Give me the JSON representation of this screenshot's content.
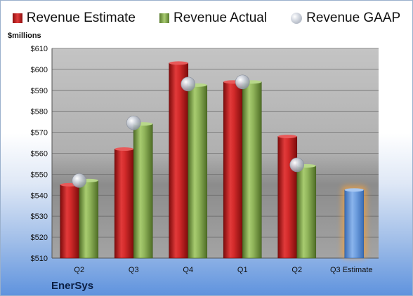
{
  "chart_data": {
    "type": "bar",
    "ylabel": "$millions",
    "ylim": [
      510,
      610
    ],
    "ytick_step": 10,
    "grid": true,
    "legend_position": "top",
    "categories": [
      "Q2",
      "Q3",
      "Q4",
      "Q1",
      "Q2",
      "Q3 Estimate"
    ],
    "series": [
      {
        "name": "Revenue Estimate",
        "kind": "bar",
        "color": "#c8242a",
        "values": [
          545,
          562,
          603,
          594,
          568,
          542.5
        ]
      },
      {
        "name": "Revenue Actual",
        "kind": "bar",
        "color": "#8fb35a",
        "values": [
          547,
          574,
          592.5,
          594,
          554,
          null
        ]
      },
      {
        "name": "Revenue GAAP",
        "kind": "marker",
        "color": "#c9cdd6",
        "values": [
          547,
          574.5,
          593,
          594,
          554.5,
          null
        ]
      }
    ],
    "estimate_bar_color": "#6a9ad8",
    "estimate_glow_color": "#f0a040",
    "company": "EnerSys"
  }
}
